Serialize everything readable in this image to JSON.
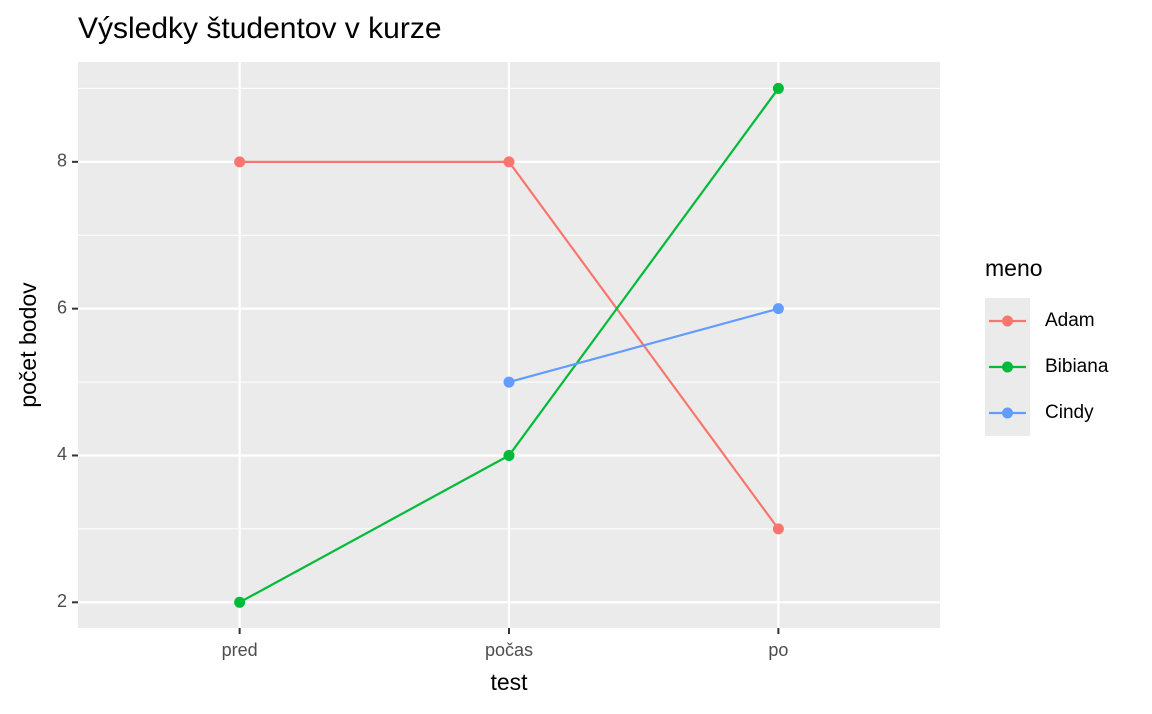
{
  "chart_data": {
    "type": "line",
    "title": "Výsledky študentov v kurze",
    "x_label": "test",
    "y_label": "počet bodov",
    "categories": [
      "pred",
      "počas",
      "po"
    ],
    "series": [
      {
        "name": "Adam",
        "color": "#F8766D",
        "values": [
          8,
          8,
          3
        ]
      },
      {
        "name": "Bibiana",
        "color": "#00BA38",
        "values": [
          2,
          4,
          9
        ]
      },
      {
        "name": "Cindy",
        "color": "#619CFF",
        "values": [
          null,
          5,
          6
        ]
      }
    ],
    "ylim": [
      1.65,
      9.36
    ],
    "yticks": [
      2,
      4,
      6,
      8
    ],
    "grid": true,
    "legend_title": "meno",
    "legend": "right"
  }
}
